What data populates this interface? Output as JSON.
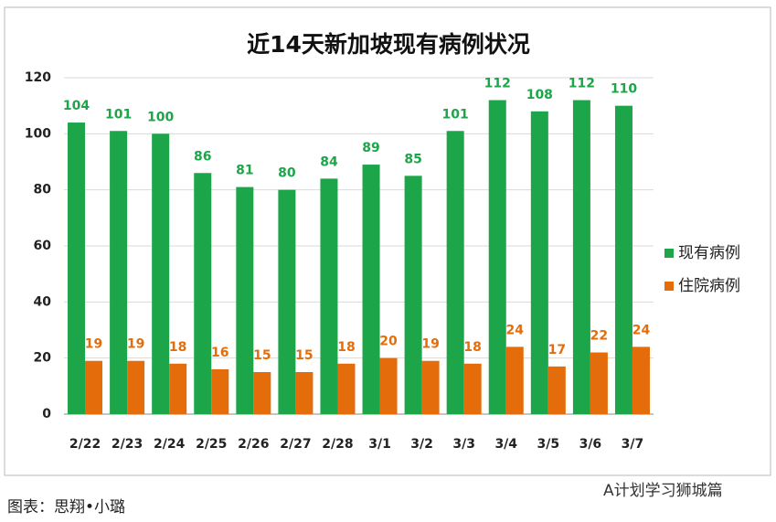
{
  "chart_data": {
    "type": "bar",
    "title": "近14天新加坡现有病例状况",
    "categories": [
      "2/22",
      "2/23",
      "2/24",
      "2/25",
      "2/26",
      "2/27",
      "2/28",
      "3/1",
      "3/2",
      "3/3",
      "3/4",
      "3/5",
      "3/6",
      "3/7"
    ],
    "series": [
      {
        "name": "现有病例",
        "color": "#1ca549",
        "values": [
          104,
          101,
          100,
          86,
          81,
          80,
          84,
          89,
          85,
          101,
          112,
          108,
          112,
          110
        ]
      },
      {
        "name": "住院病例",
        "color": "#e46c0a",
        "values": [
          19,
          19,
          18,
          16,
          15,
          15,
          18,
          20,
          19,
          18,
          24,
          17,
          22,
          24
        ]
      }
    ],
    "ylim": [
      0,
      120
    ],
    "yticks": [
      0,
      20,
      40,
      60,
      80,
      100,
      120
    ],
    "grid": true,
    "legend": "right"
  },
  "caption": "图表：思翔•小璐",
  "watermark": "A计划学习狮城篇"
}
